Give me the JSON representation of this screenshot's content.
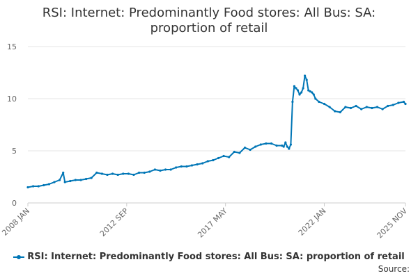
{
  "title_line1": "RSI: Internet: Predominantly Food stores: All Bus: SA:",
  "title_line2": "proportion of retail",
  "source_label": "Source:",
  "series_color": "#0076b6",
  "chart_data": {
    "type": "line",
    "title": "RSI: Internet: Predominantly Food stores: All Bus: SA: proportion of retail",
    "ylim": [
      0,
      15
    ],
    "yticks": [
      "0",
      "5",
      "10",
      "15"
    ],
    "xticks": [
      "2008 JAN",
      "2012 SEP",
      "2017 MAY",
      "2022 JAN",
      "2025 NOV"
    ],
    "x_range": [
      "2008-01",
      "2025-11"
    ],
    "grid": "horizontal",
    "legend_position": "bottom",
    "series": [
      {
        "name": "RSI: Internet: Predominantly Food stores: All Bus: SA: proportion of retail",
        "x": [
          "2008-01",
          "2008-04",
          "2008-07",
          "2008-10",
          "2009-01",
          "2009-04",
          "2009-07",
          "2009-09",
          "2009-10",
          "2010-01",
          "2010-04",
          "2010-07",
          "2010-10",
          "2011-01",
          "2011-04",
          "2011-07",
          "2011-10",
          "2012-01",
          "2012-04",
          "2012-07",
          "2012-10",
          "2013-01",
          "2013-04",
          "2013-07",
          "2013-10",
          "2014-01",
          "2014-04",
          "2014-07",
          "2014-10",
          "2015-01",
          "2015-04",
          "2015-07",
          "2015-10",
          "2016-01",
          "2016-04",
          "2016-07",
          "2016-10",
          "2017-01",
          "2017-04",
          "2017-07",
          "2017-10",
          "2018-01",
          "2018-04",
          "2018-07",
          "2018-10",
          "2019-01",
          "2019-04",
          "2019-07",
          "2019-10",
          "2020-01",
          "2020-02",
          "2020-03",
          "2020-04",
          "2020-05",
          "2020-06",
          "2020-07",
          "2020-08",
          "2020-09",
          "2020-10",
          "2020-11",
          "2020-12",
          "2021-01",
          "2021-02",
          "2021-03",
          "2021-04",
          "2021-05",
          "2021-06",
          "2021-07",
          "2021-08",
          "2021-10",
          "2022-01",
          "2022-04",
          "2022-07",
          "2022-10",
          "2023-01",
          "2023-04",
          "2023-07",
          "2023-10",
          "2024-01",
          "2024-04",
          "2024-07",
          "2024-10",
          "2025-01",
          "2025-04",
          "2025-07",
          "2025-10",
          "2025-11"
        ],
        "values": [
          1.5,
          1.6,
          1.6,
          1.7,
          1.8,
          2.0,
          2.2,
          2.9,
          2.0,
          2.1,
          2.2,
          2.2,
          2.3,
          2.4,
          2.9,
          2.8,
          2.7,
          2.8,
          2.7,
          2.8,
          2.8,
          2.7,
          2.9,
          2.9,
          3.0,
          3.2,
          3.1,
          3.2,
          3.2,
          3.4,
          3.5,
          3.5,
          3.6,
          3.7,
          3.8,
          4.0,
          4.1,
          4.3,
          4.5,
          4.4,
          4.9,
          4.8,
          5.3,
          5.1,
          5.4,
          5.6,
          5.7,
          5.7,
          5.5,
          5.5,
          5.4,
          5.8,
          5.4,
          5.2,
          5.6,
          9.7,
          11.2,
          11.0,
          10.8,
          10.4,
          10.6,
          11.0,
          12.2,
          11.8,
          10.8,
          10.7,
          10.6,
          10.4,
          10.0,
          9.7,
          9.5,
          9.2,
          8.8,
          8.7,
          9.2,
          9.1,
          9.3,
          9.0,
          9.2,
          9.1,
          9.2,
          9.0,
          9.3,
          9.4,
          9.6,
          9.7,
          9.5
        ]
      }
    ]
  }
}
